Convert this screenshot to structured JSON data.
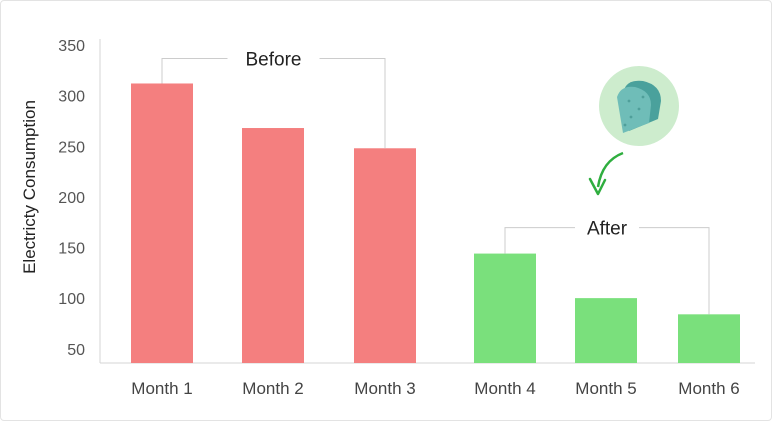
{
  "chart_data": {
    "type": "bar",
    "categories": [
      "Month 1",
      "Month 2",
      "Month 3",
      "Month 4",
      "Month 5",
      "Month 6"
    ],
    "values": [
      312,
      268,
      248,
      144,
      100,
      84
    ],
    "bar_colors": [
      "#f47f7f",
      "#f47f7f",
      "#f47f7f",
      "#7ae07c",
      "#7ae07c",
      "#7ae07c"
    ],
    "ylabel": "Electricty Consumption",
    "xlabel": "",
    "ylim": [
      30,
      350
    ],
    "yticks": [
      50,
      100,
      150,
      200,
      250,
      300,
      350
    ],
    "grid": false,
    "groups": [
      {
        "label": "Before",
        "start": 0,
        "end": 2
      },
      {
        "label": "After",
        "start": 3,
        "end": 5
      }
    ],
    "annotation": {
      "icon": "green-tablet-icon",
      "arrow_color": "#2fae3f",
      "circle_color": "#cdeccd",
      "tablet_color": "#6fbdb8"
    }
  }
}
